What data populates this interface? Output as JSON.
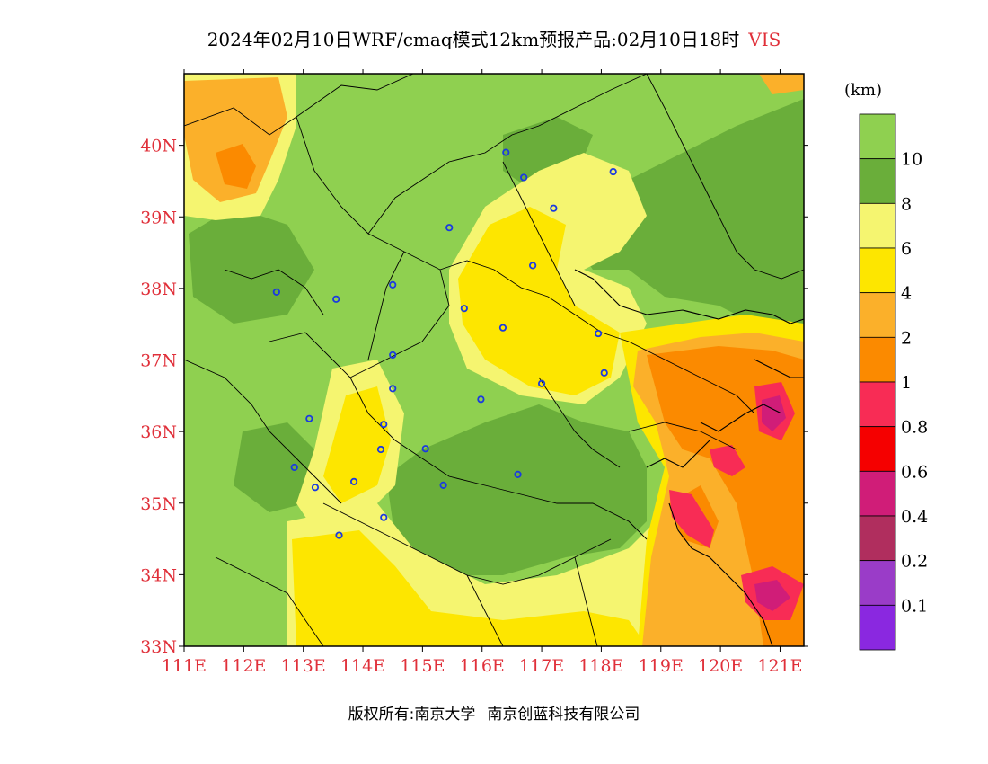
{
  "title": {
    "main": "2024年02月10日WRF/cmaq模式12km预报产品:02月10日18时",
    "variable": "VIS"
  },
  "axes": {
    "lat_labels": [
      "33N",
      "34N",
      "35N",
      "36N",
      "37N",
      "38N",
      "39N",
      "40N"
    ],
    "lon_labels": [
      "111E",
      "112E",
      "113E",
      "114E",
      "115E",
      "116E",
      "117E",
      "118E",
      "119E",
      "120E",
      "121E"
    ],
    "label_color": "#e0303a"
  },
  "colorbar": {
    "unit": "(km)",
    "labels": [
      "10",
      "8",
      "6",
      "4",
      "2",
      "1",
      "0.8",
      "0.6",
      "0.4",
      "0.2",
      "0.1"
    ],
    "colors": [
      "#8fd050",
      "#6aae3a",
      "#f5f570",
      "#fde600",
      "#fbb02a",
      "#fb8a00",
      "#f82c55",
      "#f50000",
      "#d01d78",
      "#b02e5e",
      "#9a3cc8",
      "#8a28e0"
    ]
  },
  "map": {
    "extent": {
      "lon_min": 111,
      "lon_max": 121.4,
      "lat_min": 33,
      "lat_max": 41
    },
    "cities": [
      [
        116.4,
        39.9
      ],
      [
        116.7,
        39.55
      ],
      [
        117.2,
        39.12
      ],
      [
        118.2,
        39.63
      ],
      [
        115.45,
        38.85
      ],
      [
        116.85,
        38.32
      ],
      [
        114.5,
        38.05
      ],
      [
        113.55,
        37.85
      ],
      [
        112.55,
        37.95
      ],
      [
        115.7,
        37.72
      ],
      [
        116.35,
        37.45
      ],
      [
        117.95,
        37.37
      ],
      [
        118.05,
        36.82
      ],
      [
        117.0,
        36.67
      ],
      [
        114.5,
        37.07
      ],
      [
        114.5,
        36.6
      ],
      [
        115.98,
        36.45
      ],
      [
        113.1,
        36.18
      ],
      [
        114.35,
        36.1
      ],
      [
        114.3,
        35.75
      ],
      [
        115.05,
        35.76
      ],
      [
        116.6,
        35.4
      ],
      [
        112.85,
        35.5
      ],
      [
        113.2,
        35.22
      ],
      [
        113.85,
        35.3
      ],
      [
        115.35,
        35.25
      ],
      [
        114.35,
        34.8
      ],
      [
        113.6,
        34.55
      ]
    ]
  },
  "footer": {
    "left": "版权所有:南京大学",
    "right": "南京创蓝科技有限公司"
  }
}
